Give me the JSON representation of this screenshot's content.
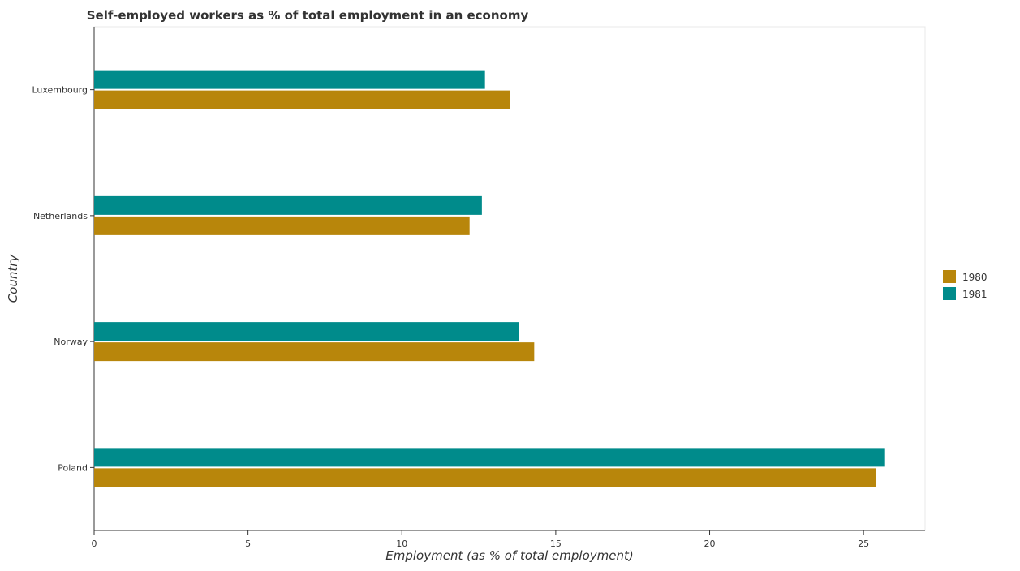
{
  "chart_data": {
    "type": "bar",
    "orientation": "horizontal",
    "title": "Self-employed workers as % of total employment in an economy",
    "xlabel": "Employment (as % of total employment)",
    "ylabel": "Country",
    "categories": [
      "Luxembourg",
      "Netherlands",
      "Norway",
      "Poland"
    ],
    "series": [
      {
        "name": "1980",
        "color": "#b8860b",
        "values": [
          13.5,
          12.2,
          14.3,
          25.4
        ]
      },
      {
        "name": "1981",
        "color": "#008b8b",
        "values": [
          12.7,
          12.6,
          13.8,
          25.7
        ]
      }
    ],
    "xlim": [
      0,
      27
    ],
    "xticks": [
      0,
      5,
      10,
      15,
      20,
      25
    ],
    "xtick_labels": [
      "0",
      "5",
      "10",
      "15",
      "20",
      "25"
    ],
    "grid": false,
    "legend_position": "right"
  }
}
